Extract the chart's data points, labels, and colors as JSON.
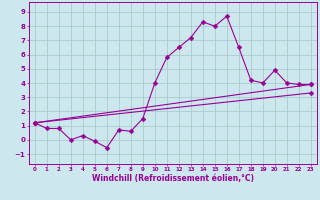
{
  "xlabel": "Windchill (Refroidissement éolien,°C)",
  "bg_color": "#cce8ee",
  "line_color": "#990099",
  "grid_color": "#aacccc",
  "xlim": [
    -0.5,
    23.5
  ],
  "ylim": [
    -1.7,
    9.7
  ],
  "xticks": [
    0,
    1,
    2,
    3,
    4,
    5,
    6,
    7,
    8,
    9,
    10,
    11,
    12,
    13,
    14,
    15,
    16,
    17,
    18,
    19,
    20,
    21,
    22,
    23
  ],
  "yticks": [
    -1,
    0,
    1,
    2,
    3,
    4,
    5,
    6,
    7,
    8,
    9
  ],
  "line1_x": [
    0,
    1,
    2,
    3,
    4,
    5,
    6,
    7,
    8,
    9,
    10,
    11,
    12,
    13,
    14,
    15,
    16,
    17,
    18,
    19,
    20,
    21,
    22,
    23
  ],
  "line1_y": [
    1.2,
    0.8,
    0.8,
    0.0,
    0.3,
    -0.1,
    -0.55,
    0.7,
    0.6,
    1.5,
    4.0,
    5.8,
    6.5,
    7.2,
    8.3,
    8.0,
    8.7,
    6.5,
    4.2,
    4.0,
    4.9,
    4.0,
    3.9,
    3.9
  ],
  "line2_x": [
    0,
    23
  ],
  "line2_y": [
    1.2,
    3.9
  ],
  "line3_x": [
    0,
    23
  ],
  "line3_y": [
    1.2,
    3.3
  ]
}
